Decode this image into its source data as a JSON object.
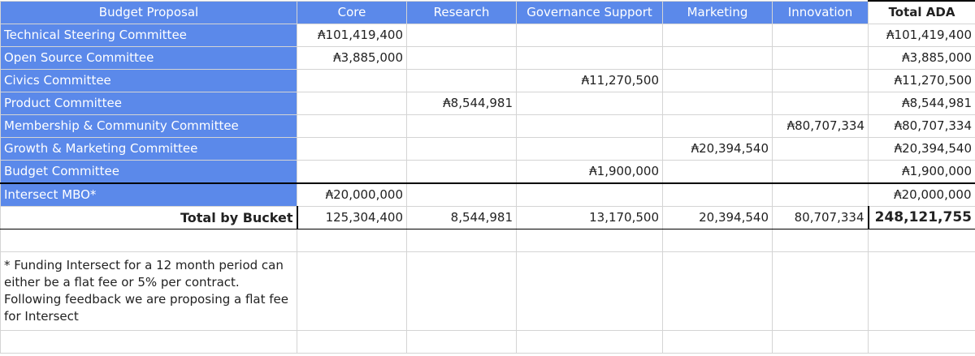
{
  "header": {
    "title": "Budget Proposal",
    "columns": [
      "Core",
      "Research",
      "Governance Support",
      "Marketing",
      "Innovation"
    ],
    "total_label": "Total ADA"
  },
  "rows": [
    {
      "name": "Technical Steering Committee",
      "core": "₳101,419,400",
      "research": "",
      "governance": "",
      "marketing": "",
      "innovation": "",
      "total": "₳101,419,400"
    },
    {
      "name": "Open Source Committee",
      "core": "₳3,885,000",
      "research": "",
      "governance": "",
      "marketing": "",
      "innovation": "",
      "total": "₳3,885,000"
    },
    {
      "name": "Civics Committee",
      "core": "",
      "research": "",
      "governance": "₳11,270,500",
      "marketing": "",
      "innovation": "",
      "total": "₳11,270,500"
    },
    {
      "name": "Product Committee",
      "core": "",
      "research": "₳8,544,981",
      "governance": "",
      "marketing": "",
      "innovation": "",
      "total": "₳8,544,981"
    },
    {
      "name": "Membership & Community Committee",
      "core": "",
      "research": "",
      "governance": "",
      "marketing": "",
      "innovation": "₳80,707,334",
      "total": "₳80,707,334"
    },
    {
      "name": "Growth & Marketing Committee",
      "core": "",
      "research": "",
      "governance": "",
      "marketing": "₳20,394,540",
      "innovation": "",
      "total": "₳20,394,540"
    },
    {
      "name": "Budget Committee",
      "core": "",
      "research": "",
      "governance": "₳1,900,000",
      "marketing": "",
      "innovation": "",
      "total": "₳1,900,000"
    },
    {
      "name": "Intersect MBO*",
      "core": "₳20,000,000",
      "research": "",
      "governance": "",
      "marketing": "",
      "innovation": "",
      "total": "₳20,000,000"
    }
  ],
  "totals": {
    "label": "Total by Bucket",
    "core": "125,304,400",
    "research": "8,544,981",
    "governance": "13,170,500",
    "marketing": "20,394,540",
    "innovation": "80,707,334",
    "grand": "248,121,755"
  },
  "footnote": "* Funding Intersect for a 12 month period can either be a flat fee or 5% per contract. Following feedback we are proposing a flat fee for Intersect",
  "colors": {
    "header_blue": "#5b89ea",
    "grid": "#d4d4d4"
  }
}
